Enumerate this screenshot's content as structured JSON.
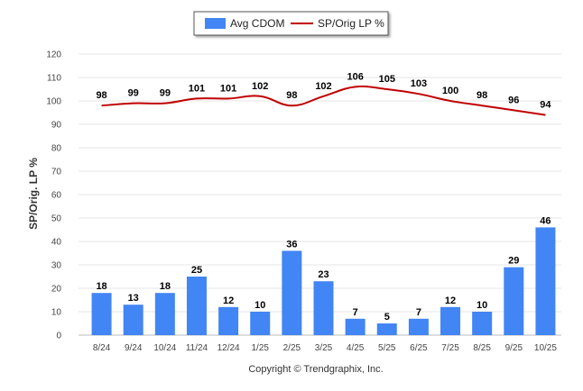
{
  "chart_data": {
    "type": "bar",
    "categories": [
      "8/24",
      "9/24",
      "10/24",
      "11/24",
      "12/24",
      "1/25",
      "2/25",
      "3/25",
      "4/25",
      "5/25",
      "6/25",
      "7/25",
      "8/25",
      "9/25",
      "10/25"
    ],
    "series": [
      {
        "name": "Avg CDOM",
        "kind": "bar",
        "color": "#4285f4",
        "values": [
          18,
          13,
          18,
          25,
          12,
          10,
          36,
          23,
          7,
          5,
          7,
          12,
          10,
          29,
          46
        ]
      },
      {
        "name": "SP/Orig LP %",
        "kind": "line",
        "color": "#c00000",
        "values": [
          98,
          99,
          99,
          101,
          101,
          102,
          98,
          102,
          106,
          105,
          103,
          100,
          98,
          96,
          94
        ]
      }
    ],
    "ylabel": "SP/Orig. LP %",
    "ylim": [
      0,
      120
    ],
    "yticks": [
      0,
      10,
      20,
      30,
      40,
      50,
      60,
      70,
      80,
      90,
      100,
      110,
      120
    ],
    "grid": true,
    "legend_position": "top-center"
  },
  "footer": {
    "copyright": "Copyright © Trendgraphix, Inc."
  }
}
